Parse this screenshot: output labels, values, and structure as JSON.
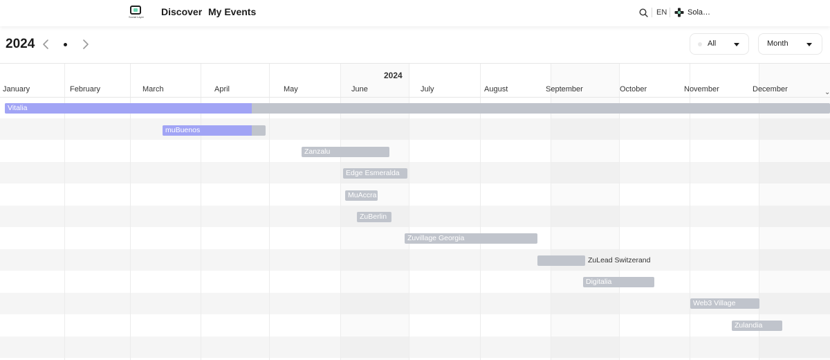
{
  "header": {
    "logo_text": "Social Layer",
    "nav": [
      "Discover",
      "My Events"
    ],
    "language": "EN",
    "account_name": "Sola…"
  },
  "toolbar": {
    "year": "2024",
    "filter_label": "All",
    "view_label": "Month"
  },
  "timeline": {
    "year_label": "2024",
    "months": [
      "January",
      "February",
      "March",
      "April",
      "May",
      "June",
      "July",
      "August",
      "September",
      "October",
      "November",
      "December"
    ],
    "events": [
      {
        "name": "Vitalia",
        "color": "#c0c4cc",
        "progress_color": "#a1a4f5"
      },
      {
        "name": "muBuenos",
        "color": "#c0c4cc",
        "progress_color": "#a1a4f5"
      },
      {
        "name": "Zanzalu",
        "color": "#c0c4cc"
      },
      {
        "name": "Edge Esmeralda",
        "color": "#c0c4cc"
      },
      {
        "name": "MuAccra",
        "color": "#c0c4cc"
      },
      {
        "name": "ZuBerlin",
        "color": "#c0c4cc"
      },
      {
        "name": "Zuvillage Georgia",
        "color": "#c0c4cc"
      },
      {
        "name": "ZuLead Switzerand",
        "color": "#c0c4cc"
      },
      {
        "name": "Digitalia",
        "color": "#c0c4cc"
      },
      {
        "name": "Web3 Village",
        "color": "#c0c4cc"
      },
      {
        "name": "Zulandia",
        "color": "#c0c4cc"
      }
    ]
  }
}
